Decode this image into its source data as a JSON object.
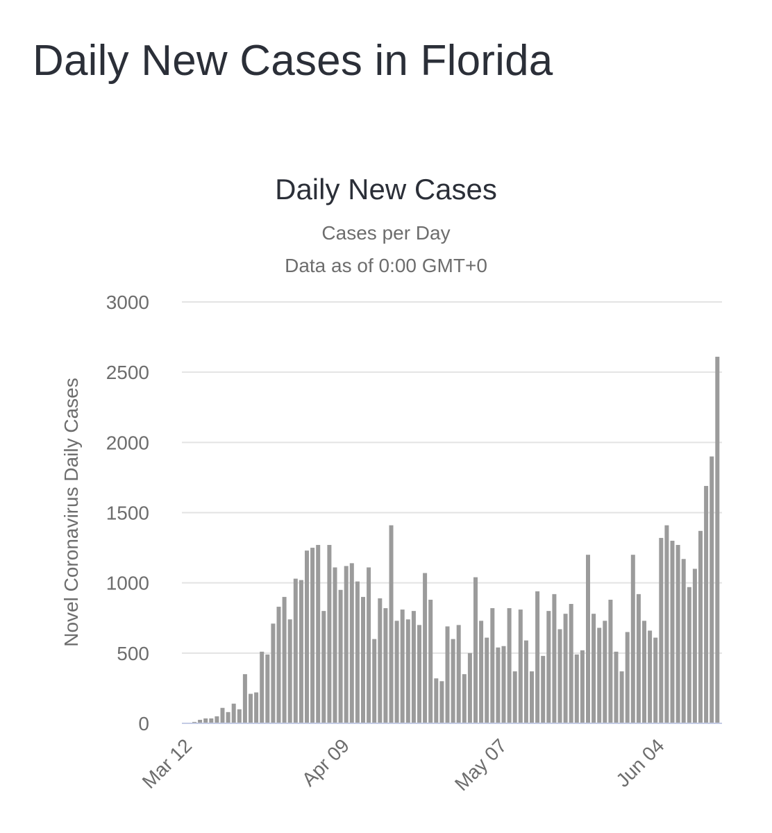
{
  "page": {
    "title": "Daily New Cases in Florida"
  },
  "chart_data": {
    "type": "bar",
    "title": "Daily New Cases",
    "subtitle": "Cases per Day",
    "subtitle2": "Data as of 0:00 GMT+0",
    "xlabel": "",
    "ylabel": "Novel Coronavirus Daily Cases",
    "ylim": [
      0,
      3000
    ],
    "yticks": [
      0,
      500,
      1000,
      1500,
      2000,
      2500,
      3000
    ],
    "x_tick_labels": [
      {
        "label": "Mar 12",
        "index": 0
      },
      {
        "label": "Apr 09",
        "index": 28
      },
      {
        "label": "May 07",
        "index": 56
      },
      {
        "label": "Jun 04",
        "index": 84
      }
    ],
    "grid": true,
    "legend": "none",
    "bar_color": "#9b9b9b",
    "categories": [
      "Mar 12",
      "Mar 13",
      "Mar 14",
      "Mar 15",
      "Mar 16",
      "Mar 17",
      "Mar 18",
      "Mar 19",
      "Mar 20",
      "Mar 21",
      "Mar 22",
      "Mar 23",
      "Mar 24",
      "Mar 25",
      "Mar 26",
      "Mar 27",
      "Mar 28",
      "Mar 29",
      "Mar 30",
      "Mar 31",
      "Apr 01",
      "Apr 02",
      "Apr 03",
      "Apr 04",
      "Apr 05",
      "Apr 06",
      "Apr 07",
      "Apr 08",
      "Apr 09",
      "Apr 10",
      "Apr 11",
      "Apr 12",
      "Apr 13",
      "Apr 14",
      "Apr 15",
      "Apr 16",
      "Apr 17",
      "Apr 18",
      "Apr 19",
      "Apr 20",
      "Apr 21",
      "Apr 22",
      "Apr 23",
      "Apr 24",
      "Apr 25",
      "Apr 26",
      "Apr 27",
      "Apr 28",
      "Apr 29",
      "Apr 30",
      "May 01",
      "May 02",
      "May 03",
      "May 04",
      "May 05",
      "May 06",
      "May 07",
      "May 08",
      "May 09",
      "May 10",
      "May 11",
      "May 12",
      "May 13",
      "May 14",
      "May 15",
      "May 16",
      "May 17",
      "May 18",
      "May 19",
      "May 20",
      "May 21",
      "May 22",
      "May 23",
      "May 24",
      "May 25",
      "May 26",
      "May 27",
      "May 28",
      "May 29",
      "May 30",
      "May 31",
      "Jun 01",
      "Jun 02",
      "Jun 03",
      "Jun 04",
      "Jun 05",
      "Jun 06",
      "Jun 07",
      "Jun 08",
      "Jun 09",
      "Jun 10",
      "Jun 11",
      "Jun 12",
      "Jun 13"
    ],
    "values": [
      10,
      25,
      35,
      35,
      50,
      110,
      80,
      140,
      100,
      350,
      210,
      220,
      510,
      490,
      710,
      830,
      900,
      740,
      1030,
      1020,
      1230,
      1250,
      1270,
      800,
      1270,
      1110,
      950,
      1120,
      1140,
      1010,
      900,
      1110,
      600,
      890,
      820,
      1410,
      730,
      810,
      740,
      800,
      700,
      1070,
      880,
      320,
      300,
      690,
      600,
      700,
      350,
      500,
      1040,
      730,
      610,
      820,
      540,
      550,
      820,
      370,
      810,
      590,
      370,
      940,
      480,
      800,
      920,
      670,
      780,
      850,
      490,
      520,
      1200,
      780,
      680,
      730,
      880,
      510,
      370,
      650,
      1200,
      920,
      730,
      660,
      610,
      1320,
      1410,
      1300,
      1270,
      1170,
      970,
      1100,
      1370,
      1690,
      1900,
      2610
    ]
  }
}
